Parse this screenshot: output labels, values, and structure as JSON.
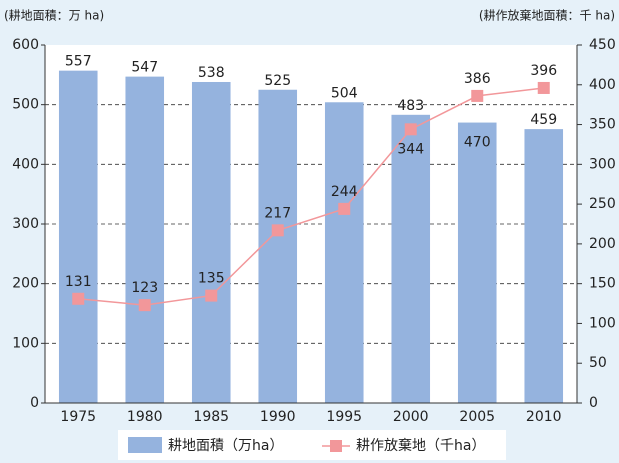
{
  "chart_data": {
    "type": "bar",
    "y_label": "(耕地面積：万 ha)",
    "y2_label": "(耕作放棄地面積：千 ha)",
    "categories": [
      "1975",
      "1980",
      "1985",
      "1990",
      "1995",
      "2000",
      "2005",
      "2010"
    ],
    "series": [
      {
        "name": "耕地面積（万ha）",
        "type": "bar",
        "color": "#95b3de",
        "values": [
          557,
          547,
          538,
          525,
          504,
          483,
          470,
          459
        ]
      },
      {
        "name": "耕作放棄地（千ha）",
        "type": "line",
        "axis": "y2",
        "color": "#f2979a",
        "values": [
          131,
          123,
          135,
          217,
          244,
          344,
          386,
          396
        ]
      }
    ],
    "ylim": [
      0,
      600
    ],
    "yticks": [
      0,
      100,
      200,
      300,
      400,
      500,
      600
    ],
    "y2lim": [
      0,
      450
    ],
    "y2ticks": [
      0,
      50,
      100,
      150,
      200,
      250,
      300,
      350,
      400,
      450
    ],
    "grid": true,
    "legend": "bottom"
  }
}
